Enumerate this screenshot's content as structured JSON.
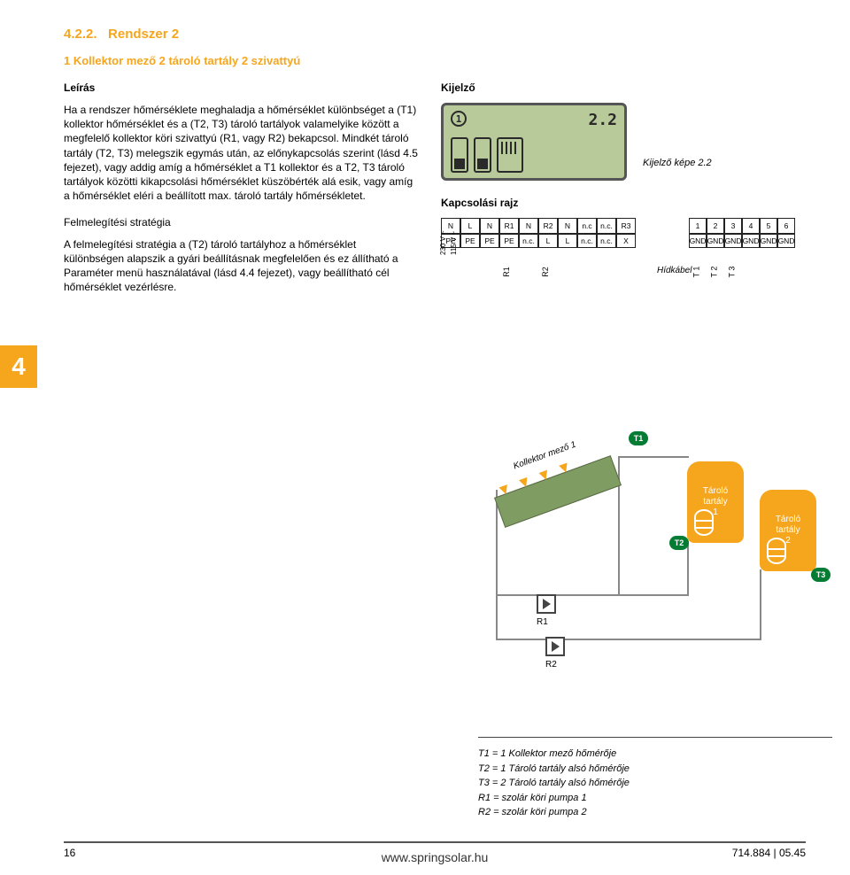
{
  "tab_number": "4",
  "section": {
    "number": "4.2.2.",
    "title_suffix": "Rendszer 2",
    "subtitle": "1 Kollektor mező 2 tároló tartály 2 szivattyú"
  },
  "leiras": {
    "heading": "Leírás",
    "p1": "Ha a rendszer hőmérséklete meghaladja a hőmérséklet különbséget a (T1) kollektor hőmérséklet és a (T2, T3) tároló tartályok valamelyike között a megfelelő kollektor köri szivattyú (R1, vagy R2) bekapcsol. Mindkét tároló tartály (T2, T3) melegszik egymás után, az előnykapcsolás szerint (lásd 4.5 fejezet), vagy addig amíg a hőmérséklet a T1 kollektor és a T2, T3 tároló tartályok közötti kikapcsolási hőmérséklet küszöbérték alá esik, vagy amíg a hőmérséklet eléri a beállított max. tároló tartály hőmérsékletet.",
    "h2": "Felmelegítési stratégia",
    "p2": "A felmelegítési stratégia a (T2) tároló tartályhoz a hőmérséklet különbségen alapszik a gyári beállításnak megfelelően és ez állítható a Paraméter menü használatával (lásd 4.4 fejezet), vagy beállítható cél hőmérséklet vezérlésre."
  },
  "right": {
    "kijelzo_heading": "Kijelző",
    "lcd": {
      "left_badge": "1",
      "right_value": "2.2",
      "icon1": "S1",
      "icon2": "S2"
    },
    "lcd_caption": "Kijelző képe 2.2",
    "kapcs_heading": "Kapcsolási rajz",
    "terminals_main_row1": [
      "N",
      "L",
      "N",
      "R1",
      "N",
      "R2",
      "N",
      "n.c",
      "n.c.",
      "R3"
    ],
    "terminals_main_row2": [
      "PE",
      "PE",
      "PE",
      "PE",
      "n.c.",
      "L",
      "L",
      "n.c.",
      "n.c.",
      "X"
    ],
    "terminals_sensors_row1": [
      "1",
      "2",
      "3",
      "4",
      "5",
      "6"
    ],
    "terminals_sensors_row2": [
      "GND",
      "GND",
      "GND",
      "GND",
      "GND",
      "GND"
    ],
    "mains_label_1": "230 V ~",
    "mains_label_2": "115 V ~",
    "hidkabel": "Hídkábel",
    "wire_r1": "R1",
    "wire_r2": "R2",
    "wire_t1": "T 1",
    "wire_t2": "T 2",
    "wire_t3": "T 3"
  },
  "schematic": {
    "collector_label": "Kollektor mező 1",
    "tank1": "Tároló\ntartály\n1",
    "tank2": "Tároló\ntartály\n2",
    "t1": "T1",
    "t2": "T2",
    "t3": "T3",
    "r1": "R1",
    "r2": "R2"
  },
  "legend": {
    "l1": "T1 = 1 Kollektor mező hőmérője",
    "l2": "T2 = 1 Tároló tartály alsó hőmérője",
    "l3": "T3 = 2 Tároló tartály alsó hőmérője",
    "l4": "R1 = szolár köri pumpa 1",
    "l5": "R2 = szolár köri pumpa 2"
  },
  "footer": {
    "page": "16",
    "url": "www.springsolar.hu",
    "docref": "714.884 | 05.45"
  },
  "colors": {
    "accent": "#f6a61c",
    "green_badge": "#057c33",
    "lcd_bg": "#b8c99a",
    "collector_green": "#7f9c63"
  }
}
